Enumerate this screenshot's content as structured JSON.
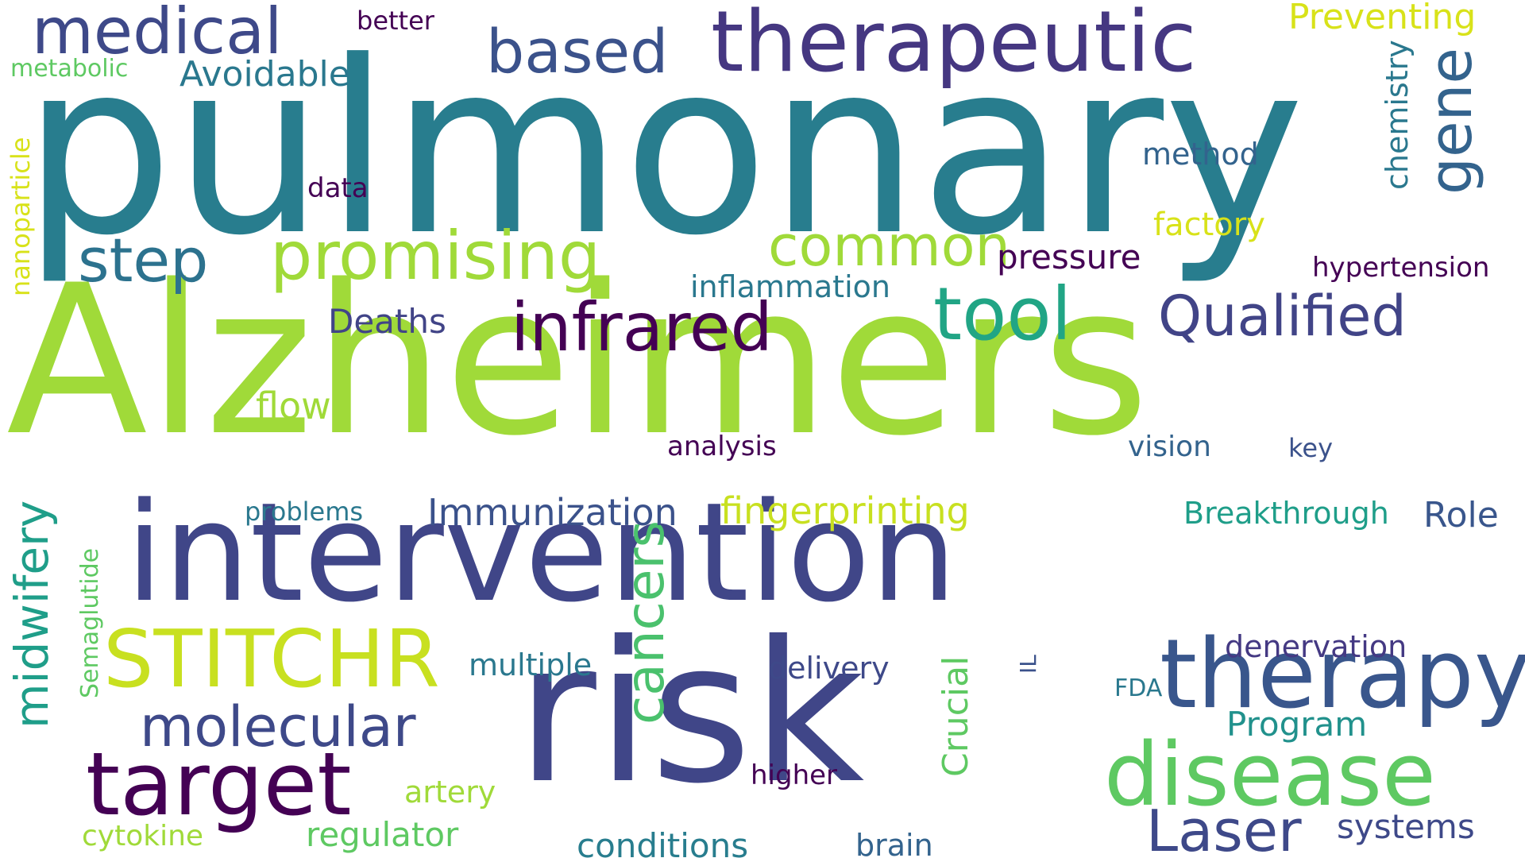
{
  "words": [
    {
      "text": "pulmonary",
      "color": "#287d8e",
      "orientation": "horizontal"
    },
    {
      "text": "Alzheimers",
      "color": "#a0da39",
      "orientation": "horizontal"
    },
    {
      "text": "intervention",
      "color": "#404688",
      "orientation": "horizontal"
    },
    {
      "text": "risk",
      "color": "#404688",
      "orientation": "horizontal"
    },
    {
      "text": "therapeutic",
      "color": "#453781",
      "orientation": "horizontal"
    },
    {
      "text": "therapy",
      "color": "#39568c",
      "orientation": "horizontal"
    },
    {
      "text": "disease",
      "color": "#5ec962",
      "orientation": "horizontal"
    },
    {
      "text": "target",
      "color": "#440154",
      "orientation": "horizontal"
    },
    {
      "text": "STITCHR",
      "color": "#c8e020",
      "orientation": "horizontal"
    },
    {
      "text": "promising",
      "color": "#a0da39",
      "orientation": "horizontal"
    },
    {
      "text": "infrared",
      "color": "#440154",
      "orientation": "horizontal"
    },
    {
      "text": "tool",
      "color": "#21a585",
      "orientation": "horizontal"
    },
    {
      "text": "Qualified",
      "color": "#414487",
      "orientation": "horizontal"
    },
    {
      "text": "medical",
      "color": "#3e4989",
      "orientation": "horizontal"
    },
    {
      "text": "based",
      "color": "#3b528b",
      "orientation": "horizontal"
    },
    {
      "text": "step",
      "color": "#2c728e",
      "orientation": "horizontal"
    },
    {
      "text": "common",
      "color": "#a0da39",
      "orientation": "horizontal"
    },
    {
      "text": "gene",
      "color": "#33638d",
      "orientation": "vertical"
    },
    {
      "text": "molecular",
      "color": "#3e4989",
      "orientation": "horizontal"
    },
    {
      "text": "Laser",
      "color": "#3e4989",
      "orientation": "horizontal"
    },
    {
      "text": "cancers",
      "color": "#4ac16d",
      "orientation": "vertical"
    },
    {
      "text": "midwifery",
      "color": "#1f9e89",
      "orientation": "vertical"
    },
    {
      "text": "Immunization",
      "color": "#3b528b",
      "orientation": "horizontal"
    },
    {
      "text": "fingerprinting",
      "color": "#c8e020",
      "orientation": "horizontal"
    },
    {
      "text": "Breakthrough",
      "color": "#1f9e89",
      "orientation": "horizontal"
    },
    {
      "text": "Role",
      "color": "#39568c",
      "orientation": "horizontal"
    },
    {
      "text": "Deaths",
      "color": "#414487",
      "orientation": "horizontal"
    },
    {
      "text": "flow",
      "color": "#a0da39",
      "orientation": "horizontal"
    },
    {
      "text": "Preventing",
      "color": "#d8e219",
      "orientation": "horizontal"
    },
    {
      "text": "Avoidable",
      "color": "#2a788e",
      "orientation": "horizontal"
    },
    {
      "text": "better",
      "color": "#440154",
      "orientation": "horizontal"
    },
    {
      "text": "metabolic",
      "color": "#5ec962",
      "orientation": "horizontal"
    },
    {
      "text": "method",
      "color": "#33638d",
      "orientation": "horizontal"
    },
    {
      "text": "data",
      "color": "#440154",
      "orientation": "horizontal"
    },
    {
      "text": "factory",
      "color": "#d8e219",
      "orientation": "horizontal"
    },
    {
      "text": "pressure",
      "color": "#440154",
      "orientation": "horizontal"
    },
    {
      "text": "hypertension",
      "color": "#440154",
      "orientation": "horizontal"
    },
    {
      "text": "inflammation",
      "color": "#2a788e",
      "orientation": "horizontal"
    },
    {
      "text": "chemistry",
      "color": "#2a788e",
      "orientation": "vertical"
    },
    {
      "text": "nanoparticle",
      "color": "#d8e219",
      "orientation": "vertical"
    },
    {
      "text": "analysis",
      "color": "#440154",
      "orientation": "horizontal"
    },
    {
      "text": "vision",
      "color": "#33638d",
      "orientation": "horizontal"
    },
    {
      "text": "key",
      "color": "#3b528b",
      "orientation": "horizontal"
    },
    {
      "text": "problems",
      "color": "#2a788e",
      "orientation": "horizontal"
    },
    {
      "text": "denervation",
      "color": "#443983",
      "orientation": "horizontal"
    },
    {
      "text": "multiple",
      "color": "#2a788e",
      "orientation": "horizontal"
    },
    {
      "text": "delivery",
      "color": "#3e4989",
      "orientation": "horizontal"
    },
    {
      "text": "IL",
      "color": "#3b528b",
      "orientation": "vertical"
    },
    {
      "text": "FDA",
      "color": "#2a788e",
      "orientation": "horizontal"
    },
    {
      "text": "Program",
      "color": "#21918c",
      "orientation": "horizontal"
    },
    {
      "text": "Semaglutide",
      "color": "#5ec962",
      "orientation": "vertical"
    },
    {
      "text": "Crucial",
      "color": "#5ec962",
      "orientation": "vertical"
    },
    {
      "text": "higher",
      "color": "#440154",
      "orientation": "horizontal"
    },
    {
      "text": "artery",
      "color": "#a0da39",
      "orientation": "horizontal"
    },
    {
      "text": "cytokine",
      "color": "#a0da39",
      "orientation": "horizontal"
    },
    {
      "text": "regulator",
      "color": "#5ec962",
      "orientation": "horizontal"
    },
    {
      "text": "conditions",
      "color": "#287d8e",
      "orientation": "horizontal"
    },
    {
      "text": "brain",
      "color": "#33638d",
      "orientation": "horizontal"
    },
    {
      "text": "systems",
      "color": "#3e4989",
      "orientation": "horizontal"
    }
  ]
}
